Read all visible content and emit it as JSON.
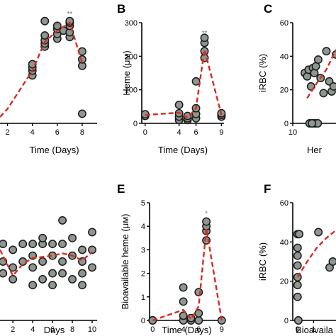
{
  "colors": {
    "point_fill": "#8d968f",
    "point_stroke": "#1a1a1a",
    "trend": "#d62b20",
    "axis": "#000000",
    "asterisk": "#777777"
  },
  "chart_data": [
    {
      "panel": "A",
      "type": "scatter",
      "show_label": false,
      "xlabel": "Time (Days)",
      "ylabel": "",
      "xticks": [
        "2",
        "4",
        "6",
        "8"
      ],
      "xtick_values": [
        2,
        4,
        6,
        8
      ],
      "xlim": [
        1.4,
        9.2
      ],
      "ylim": [
        0,
        63
      ],
      "yticks": [],
      "points": [
        [
          4,
          30
        ],
        [
          4,
          33
        ],
        [
          4,
          35
        ],
        [
          4,
          37
        ],
        [
          5,
          48
        ],
        [
          5,
          50
        ],
        [
          5,
          52
        ],
        [
          5,
          55
        ],
        [
          5,
          64
        ],
        [
          6,
          53
        ],
        [
          6,
          56
        ],
        [
          6,
          59
        ],
        [
          6,
          61
        ],
        [
          6.5,
          58
        ],
        [
          7,
          54
        ],
        [
          7,
          57
        ],
        [
          7,
          61
        ],
        [
          7,
          63
        ],
        [
          7,
          64
        ],
        [
          8,
          36
        ],
        [
          8,
          40
        ],
        [
          8,
          45
        ],
        [
          8,
          6
        ]
      ],
      "trend": [
        [
          1.4,
          4
        ],
        [
          2,
          9
        ],
        [
          4,
          33
        ],
        [
          5,
          51
        ],
        [
          6,
          58
        ],
        [
          7,
          63
        ],
        [
          8,
          38
        ]
      ],
      "annotations": [
        {
          "text": "**",
          "x": 6,
          "y": 60
        },
        {
          "text": "**",
          "x": 7,
          "y": 67
        }
      ]
    },
    {
      "panel": "B",
      "type": "scatter",
      "show_label": true,
      "xlabel": "Time (Days)",
      "ylabel": "Heme (μм)",
      "xticks": [
        "0",
        "4",
        "6",
        "9"
      ],
      "xtick_values": [
        0,
        4,
        6,
        9
      ],
      "xlim": [
        -0.4,
        9.3
      ],
      "ylim": [
        0,
        300
      ],
      "yticks": [
        0,
        100,
        200,
        300
      ],
      "points": [
        [
          0,
          22
        ],
        [
          0,
          27
        ],
        [
          4,
          10
        ],
        [
          4,
          20
        ],
        [
          4,
          30
        ],
        [
          4,
          55
        ],
        [
          5,
          10
        ],
        [
          5,
          15
        ],
        [
          5,
          22
        ],
        [
          6,
          15
        ],
        [
          6,
          28
        ],
        [
          6,
          45
        ],
        [
          6,
          125
        ],
        [
          7,
          195
        ],
        [
          7,
          215
        ],
        [
          7,
          240
        ],
        [
          7,
          255
        ],
        [
          9,
          20
        ],
        [
          9,
          25
        ],
        [
          9,
          30
        ]
      ],
      "trend": [
        [
          0,
          25
        ],
        [
          4,
          32
        ],
        [
          5,
          17
        ],
        [
          6,
          45
        ],
        [
          7,
          220
        ],
        [
          9,
          25
        ]
      ],
      "annotations": [
        {
          "text": "**",
          "x": 7,
          "y": 262
        }
      ]
    },
    {
      "panel": "C",
      "type": "scatter",
      "show_label": true,
      "xlabel": "Her",
      "ylabel": "iRBC (%)",
      "xticks": [
        "10"
      ],
      "xtick_values": [
        10
      ],
      "xlim": [
        10,
        19
      ],
      "ylim": [
        0,
        60
      ],
      "yticks": [
        0,
        20,
        40,
        60
      ],
      "points": [
        [
          12.5,
          30
        ],
        [
          13,
          28
        ],
        [
          13.3,
          32
        ],
        [
          13.8,
          22
        ],
        [
          14.2,
          33
        ],
        [
          14.5,
          30
        ],
        [
          14.8,
          34
        ],
        [
          15.3,
          38
        ],
        [
          15.8,
          27
        ],
        [
          16.4,
          18
        ],
        [
          17,
          43
        ],
        [
          17.6,
          25
        ],
        [
          18.1,
          19
        ],
        [
          18.5,
          22
        ],
        [
          19,
          41
        ],
        [
          13.5,
          0
        ],
        [
          14.2,
          0
        ],
        [
          14.7,
          0
        ],
        [
          15.2,
          0
        ],
        [
          14.0,
          0
        ]
      ],
      "trend": [
        [
          13,
          15
        ],
        [
          15,
          24
        ],
        [
          17,
          32
        ],
        [
          19,
          44
        ]
      ],
      "annotations": []
    },
    {
      "panel": "D",
      "type": "scatter",
      "show_label": false,
      "xlabel": "Days",
      "ylabel": "",
      "xticks": [
        "2",
        "4",
        "6",
        "8",
        "10"
      ],
      "xtick_values": [
        2,
        4,
        6,
        8,
        10
      ],
      "xlim": [
        0.7,
        10.5
      ],
      "ylim": [
        0,
        10
      ],
      "yticks": [],
      "points": [
        [
          1,
          4
        ],
        [
          1,
          5
        ],
        [
          1,
          6.5
        ],
        [
          2,
          3.5
        ],
        [
          2,
          4.5
        ],
        [
          2,
          6
        ],
        [
          3,
          6.5
        ],
        [
          3,
          5
        ],
        [
          4,
          3
        ],
        [
          4,
          4.5
        ],
        [
          4,
          5.5
        ],
        [
          4,
          6.5
        ],
        [
          5,
          3.5
        ],
        [
          5,
          5
        ],
        [
          5,
          6.5
        ],
        [
          5,
          7
        ],
        [
          6,
          3
        ],
        [
          6,
          4
        ],
        [
          6,
          5.5
        ],
        [
          6,
          6.5
        ],
        [
          7,
          4
        ],
        [
          7,
          5
        ],
        [
          7,
          6.5
        ],
        [
          7,
          8.5
        ],
        [
          8,
          3.5
        ],
        [
          8,
          5.5
        ],
        [
          8,
          7
        ],
        [
          9,
          3
        ],
        [
          9,
          4
        ],
        [
          9,
          5
        ],
        [
          9,
          6
        ],
        [
          10,
          4.5
        ],
        [
          10,
          6
        ],
        [
          10,
          7.5
        ]
      ],
      "trend": [
        [
          0.7,
          6
        ],
        [
          1,
          5.5
        ],
        [
          2,
          3.8
        ],
        [
          3,
          4.8
        ],
        [
          4,
          5.3
        ],
        [
          5,
          5.4
        ],
        [
          6,
          5.5
        ],
        [
          7,
          5.7
        ],
        [
          8,
          5.5
        ],
        [
          9,
          5.1
        ],
        [
          10,
          5.8
        ]
      ],
      "annotations": []
    },
    {
      "panel": "E",
      "type": "scatter",
      "show_label": true,
      "xlabel": "Time (Days)",
      "ylabel": "Bioavailable heme (μм)",
      "xticks": [
        "0",
        "4",
        "6",
        "9"
      ],
      "xtick_values": [
        0,
        4,
        6,
        9
      ],
      "xlim": [
        -0.4,
        9.3
      ],
      "ylim": [
        0,
        5
      ],
      "yticks": [
        0,
        1,
        2,
        3,
        4,
        5
      ],
      "points": [
        [
          0,
          0
        ],
        [
          0,
          0
        ],
        [
          4,
          0
        ],
        [
          4,
          0.2
        ],
        [
          4,
          0.8
        ],
        [
          4,
          1.4
        ],
        [
          5,
          0
        ],
        [
          5,
          0.1
        ],
        [
          6,
          0
        ],
        [
          6,
          0.3
        ],
        [
          6,
          1.2
        ],
        [
          7,
          3.4
        ],
        [
          7,
          3.8
        ],
        [
          7,
          4.0
        ],
        [
          7,
          4.2
        ],
        [
          9,
          0
        ]
      ],
      "trend": [
        [
          0,
          0
        ],
        [
          4,
          0.45
        ],
        [
          5,
          0.05
        ],
        [
          6,
          0.6
        ],
        [
          7,
          3.9
        ],
        [
          9,
          0
        ]
      ],
      "annotations": [
        {
          "text": "*",
          "x": 7,
          "y": 4.45
        }
      ]
    },
    {
      "panel": "F",
      "type": "scatter",
      "show_label": true,
      "xlabel": "Bioavaila",
      "ylabel": "iRBC (%)",
      "xticks": [
        "0",
        "1"
      ],
      "xtick_values": [
        0,
        1
      ],
      "xlim": [
        -0.3,
        2.4
      ],
      "ylim": [
        0,
        60
      ],
      "yticks": [
        0,
        20,
        40,
        60
      ],
      "points": [
        [
          0,
          44
        ],
        [
          0.1,
          44
        ],
        [
          0,
          37
        ],
        [
          0,
          33
        ],
        [
          0,
          28
        ],
        [
          0,
          22
        ],
        [
          0,
          18
        ],
        [
          0,
          12
        ],
        [
          0.05,
          0
        ],
        [
          1.3,
          45
        ],
        [
          2,
          27
        ],
        [
          2.2,
          30
        ]
      ],
      "trend": [
        [
          0,
          22
        ],
        [
          0.6,
          30
        ],
        [
          1.2,
          37
        ],
        [
          1.8,
          42
        ],
        [
          2.4,
          46
        ]
      ],
      "annotations": []
    }
  ]
}
